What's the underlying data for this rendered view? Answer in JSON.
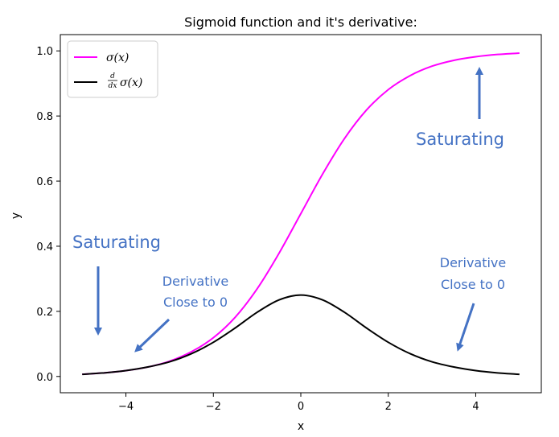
{
  "chart_data": {
    "type": "line",
    "title": "Sigmoid function and it's derivative:",
    "xlabel": "x",
    "ylabel": "y",
    "xlim": [
      -5.5,
      5.5
    ],
    "ylim": [
      -0.05,
      1.05
    ],
    "xticks": [
      -4,
      -2,
      0,
      2,
      4
    ],
    "xtick_labels": [
      "−4",
      "−2",
      "0",
      "2",
      "4"
    ],
    "yticks": [
      0.0,
      0.2,
      0.4,
      0.6,
      0.8,
      1.0
    ],
    "ytick_labels": [
      "0.0",
      "0.2",
      "0.4",
      "0.6",
      "0.8",
      "1.0"
    ],
    "grid": false,
    "legend_position": "top-left",
    "series": [
      {
        "name": "σ(x)",
        "color": "#ff00ff",
        "x": [
          -5,
          -4.5,
          -4,
          -3.5,
          -3,
          -2.5,
          -2,
          -1.5,
          -1,
          -0.5,
          0,
          0.5,
          1,
          1.5,
          2,
          2.5,
          3,
          3.5,
          4,
          4.5,
          5
        ],
        "y": [
          0.0067,
          0.011,
          0.018,
          0.029,
          0.047,
          0.076,
          0.119,
          0.182,
          0.269,
          0.378,
          0.5,
          0.622,
          0.731,
          0.818,
          0.881,
          0.924,
          0.953,
          0.971,
          0.982,
          0.989,
          0.993
        ]
      },
      {
        "name": "d/dx σ(x)",
        "color": "#000000",
        "x": [
          -5,
          -4.5,
          -4,
          -3.5,
          -3,
          -2.5,
          -2,
          -1.5,
          -1,
          -0.5,
          0,
          0.5,
          1,
          1.5,
          2,
          2.5,
          3,
          3.5,
          4,
          4.5,
          5
        ],
        "y": [
          0.0066,
          0.011,
          0.018,
          0.029,
          0.045,
          0.07,
          0.105,
          0.149,
          0.197,
          0.235,
          0.25,
          0.235,
          0.197,
          0.149,
          0.105,
          0.07,
          0.045,
          0.029,
          0.018,
          0.011,
          0.0066
        ]
      }
    ],
    "legend": {
      "sigma_label": "σ(x)",
      "deriv_d": "d",
      "deriv_dx": "dx",
      "deriv_label": "σ(x)"
    },
    "annotations": {
      "color": "#4472c4",
      "saturating_left": "Saturating",
      "saturating_right": "Saturating",
      "derivative_left_line1": "Derivative",
      "derivative_left_line2": "Close to 0",
      "derivative_right_line1": "Derivative",
      "derivative_right_line2": "Close to 0"
    }
  }
}
